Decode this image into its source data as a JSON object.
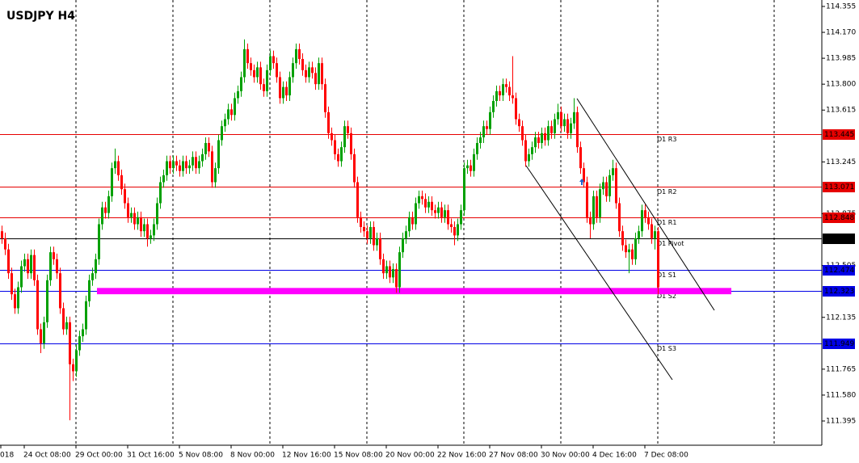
{
  "chart_data": {
    "type": "candlestick",
    "title": "USDJPY H4",
    "up_color": "#00a000",
    "down_color": "#ff0000",
    "ylim": [
      111.222,
      114.401
    ],
    "yticks": [
      {
        "value": 114.355,
        "label": "114.355"
      },
      {
        "value": 114.17,
        "label": "114.170"
      },
      {
        "value": 113.985,
        "label": "113.985"
      },
      {
        "value": 113.8,
        "label": "113.800"
      },
      {
        "value": 113.615,
        "label": "113.615"
      },
      {
        "value": 113.245,
        "label": "113.245"
      },
      {
        "value": 112.875,
        "label": "112.875"
      },
      {
        "value": 112.505,
        "label": "112.505"
      },
      {
        "value": 112.135,
        "label": "112.135"
      },
      {
        "value": 111.765,
        "label": "111.765"
      },
      {
        "value": 111.58,
        "label": "111.580"
      },
      {
        "value": 111.395,
        "label": "111.395"
      }
    ],
    "time_labels": [
      "018",
      "24 Oct 08:00",
      "29 Oct 00:00",
      "31 Oct 16:00",
      "5 Nov 08:00",
      "8 Nov 00:00",
      "12 Nov 16:00",
      "15 Nov 08:00",
      "20 Nov 00:00",
      "22 Nov 16:00",
      "27 Nov 08:00",
      "30 Nov 00:00",
      "4 Dec 16:00",
      "7 Dec 08:00"
    ],
    "levels": [
      {
        "name": "D1 R3",
        "value": 113.445,
        "color": "#e60000"
      },
      {
        "name": "D1 R2",
        "value": 113.071,
        "color": "#e60000"
      },
      {
        "name": "D1 R1",
        "value": 112.848,
        "color": "#e60000"
      },
      {
        "name": "D1 Pivot",
        "value": 112.697,
        "color": "#000000"
      },
      {
        "name": "D1 S1",
        "value": 112.474,
        "color": "#0000e6"
      },
      {
        "name": "D1 S2",
        "value": 112.323,
        "color": "#0000e6"
      },
      {
        "name": "D1 S3",
        "value": 111.949,
        "color": "#0000e6"
      }
    ],
    "zone": {
      "low": 112.3,
      "high": 112.345,
      "color": "#ff00ff"
    },
    "candles": [
      [
        112.75,
        112.79,
        112.66,
        112.7
      ],
      [
        112.7,
        112.74,
        112.58,
        112.62
      ],
      [
        112.62,
        112.66,
        112.41,
        112.45
      ],
      [
        112.45,
        112.49,
        112.26,
        112.3
      ],
      [
        112.3,
        112.34,
        112.16,
        112.2
      ],
      [
        112.2,
        112.39,
        112.16,
        112.35
      ],
      [
        112.35,
        112.54,
        112.31,
        112.5
      ],
      [
        112.5,
        112.59,
        112.46,
        112.55
      ],
      [
        112.55,
        112.59,
        112.41,
        112.45
      ],
      [
        112.45,
        112.62,
        112.41,
        112.58
      ],
      [
        112.58,
        112.62,
        112.36,
        112.4
      ],
      [
        112.4,
        112.44,
        112.01,
        112.05
      ],
      [
        112.05,
        112.09,
        111.88,
        111.95
      ],
      [
        111.95,
        112.14,
        111.91,
        112.1
      ],
      [
        112.1,
        112.44,
        112.06,
        112.4
      ],
      [
        112.4,
        112.64,
        112.36,
        112.6
      ],
      [
        112.6,
        112.64,
        112.51,
        112.55
      ],
      [
        112.55,
        112.59,
        112.41,
        112.45
      ],
      [
        112.45,
        112.49,
        112.16,
        112.2
      ],
      [
        112.2,
        112.24,
        112.01,
        112.05
      ],
      [
        112.05,
        112.14,
        112.01,
        112.1
      ],
      [
        112.1,
        112.14,
        111.4,
        111.8
      ],
      [
        111.8,
        111.84,
        111.68,
        111.75
      ],
      [
        111.75,
        111.94,
        111.71,
        111.9
      ],
      [
        111.9,
        112.04,
        111.86,
        112.0
      ],
      [
        112.0,
        112.09,
        111.96,
        112.05
      ],
      [
        112.05,
        112.29,
        112.01,
        112.25
      ],
      [
        112.25,
        112.44,
        112.21,
        112.4
      ],
      [
        112.4,
        112.49,
        112.36,
        112.45
      ],
      [
        112.45,
        112.59,
        112.41,
        112.55
      ],
      [
        112.55,
        112.84,
        112.51,
        112.8
      ],
      [
        112.8,
        112.96,
        112.76,
        112.92
      ],
      [
        112.92,
        112.96,
        112.84,
        112.88
      ],
      [
        112.88,
        113.04,
        112.84,
        113.0
      ],
      [
        113.0,
        113.24,
        112.96,
        113.2
      ],
      [
        113.2,
        113.34,
        113.16,
        113.25
      ],
      [
        113.25,
        113.29,
        113.11,
        113.15
      ],
      [
        113.15,
        113.19,
        113.01,
        113.05
      ],
      [
        113.05,
        113.09,
        112.91,
        112.95
      ],
      [
        112.95,
        112.99,
        112.81,
        112.85
      ],
      [
        112.85,
        112.92,
        112.81,
        112.88
      ],
      [
        112.88,
        112.92,
        112.76,
        112.8
      ],
      [
        112.8,
        112.89,
        112.76,
        112.85
      ],
      [
        112.85,
        112.89,
        112.71,
        112.75
      ],
      [
        112.75,
        112.84,
        112.71,
        112.8
      ],
      [
        112.8,
        112.84,
        112.64,
        112.7
      ],
      [
        112.7,
        112.76,
        112.66,
        112.72
      ],
      [
        112.72,
        112.84,
        112.68,
        112.8
      ],
      [
        112.8,
        112.99,
        112.76,
        112.95
      ],
      [
        112.95,
        113.14,
        112.91,
        113.1
      ],
      [
        113.1,
        113.19,
        113.06,
        113.15
      ],
      [
        113.15,
        113.29,
        113.11,
        113.25
      ],
      [
        113.25,
        113.29,
        113.16,
        113.2
      ],
      [
        113.2,
        113.29,
        113.16,
        113.25
      ],
      [
        113.25,
        113.29,
        113.18,
        113.22
      ],
      [
        113.22,
        113.26,
        113.14,
        113.18
      ],
      [
        113.18,
        113.29,
        113.14,
        113.25
      ],
      [
        113.25,
        113.29,
        113.16,
        113.2
      ],
      [
        113.2,
        113.26,
        113.16,
        113.22
      ],
      [
        113.22,
        113.32,
        113.18,
        113.28
      ],
      [
        113.28,
        113.32,
        113.16,
        113.2
      ],
      [
        113.2,
        113.29,
        113.16,
        113.25
      ],
      [
        113.25,
        113.34,
        113.21,
        113.3
      ],
      [
        113.3,
        113.42,
        113.26,
        113.38
      ],
      [
        113.38,
        113.42,
        113.28,
        113.32
      ],
      [
        113.32,
        113.36,
        113.06,
        113.1
      ],
      [
        113.1,
        113.24,
        113.06,
        113.2
      ],
      [
        113.2,
        113.44,
        113.16,
        113.4
      ],
      [
        113.4,
        113.54,
        113.36,
        113.5
      ],
      [
        113.5,
        113.59,
        113.46,
        113.55
      ],
      [
        113.55,
        113.66,
        113.51,
        113.62
      ],
      [
        113.62,
        113.66,
        113.54,
        113.58
      ],
      [
        113.58,
        113.74,
        113.54,
        113.7
      ],
      [
        113.7,
        113.79,
        113.66,
        113.75
      ],
      [
        113.75,
        113.89,
        113.71,
        113.85
      ],
      [
        113.85,
        114.12,
        113.81,
        114.05
      ],
      [
        114.05,
        114.09,
        113.91,
        113.95
      ],
      [
        113.95,
        113.99,
        113.86,
        113.9
      ],
      [
        113.9,
        113.94,
        113.81,
        113.85
      ],
      [
        113.85,
        113.96,
        113.81,
        113.92
      ],
      [
        113.92,
        113.96,
        113.76,
        113.8
      ],
      [
        113.8,
        113.84,
        113.71,
        113.75
      ],
      [
        113.75,
        113.94,
        113.71,
        113.9
      ],
      [
        113.9,
        114.04,
        113.86,
        114.0
      ],
      [
        114.0,
        114.04,
        113.91,
        113.95
      ],
      [
        113.95,
        113.99,
        113.81,
        113.85
      ],
      [
        113.85,
        113.89,
        113.66,
        113.7
      ],
      [
        113.7,
        113.82,
        113.66,
        113.78
      ],
      [
        113.78,
        113.82,
        113.68,
        113.72
      ],
      [
        113.72,
        113.89,
        113.68,
        113.85
      ],
      [
        113.85,
        113.99,
        113.81,
        113.95
      ],
      [
        113.95,
        114.09,
        113.91,
        114.05
      ],
      [
        114.05,
        114.09,
        113.94,
        113.98
      ],
      [
        113.98,
        114.02,
        113.86,
        113.9
      ],
      [
        113.9,
        113.94,
        113.81,
        113.85
      ],
      [
        113.85,
        113.96,
        113.81,
        113.92
      ],
      [
        113.92,
        113.96,
        113.84,
        113.88
      ],
      [
        113.88,
        113.92,
        113.76,
        113.8
      ],
      [
        113.8,
        113.99,
        113.76,
        113.95
      ],
      [
        113.95,
        113.99,
        113.76,
        113.8
      ],
      [
        113.8,
        113.84,
        113.56,
        113.6
      ],
      [
        113.6,
        113.64,
        113.41,
        113.45
      ],
      [
        113.45,
        113.49,
        113.36,
        113.4
      ],
      [
        113.4,
        113.44,
        113.26,
        113.3
      ],
      [
        113.3,
        113.34,
        113.21,
        113.25
      ],
      [
        113.25,
        113.39,
        113.21,
        113.35
      ],
      [
        113.35,
        113.54,
        113.31,
        113.5
      ],
      [
        113.5,
        113.54,
        113.41,
        113.45
      ],
      [
        113.45,
        113.49,
        113.26,
        113.3
      ],
      [
        113.3,
        113.34,
        113.06,
        113.1
      ],
      [
        113.1,
        113.14,
        112.81,
        112.85
      ],
      [
        112.85,
        112.89,
        112.74,
        112.78
      ],
      [
        112.78,
        112.82,
        112.71,
        112.75
      ],
      [
        112.75,
        112.79,
        112.66,
        112.7
      ],
      [
        112.7,
        112.82,
        112.66,
        112.78
      ],
      [
        112.78,
        112.82,
        112.61,
        112.65
      ],
      [
        112.65,
        112.74,
        112.61,
        112.7
      ],
      [
        112.7,
        112.74,
        112.51,
        112.55
      ],
      [
        112.55,
        112.59,
        112.41,
        112.45
      ],
      [
        112.45,
        112.54,
        112.41,
        112.5
      ],
      [
        112.5,
        112.54,
        112.38,
        112.42
      ],
      [
        112.42,
        112.52,
        112.38,
        112.48
      ],
      [
        112.48,
        112.52,
        112.31,
        112.35
      ],
      [
        112.35,
        112.64,
        112.31,
        112.6
      ],
      [
        112.6,
        112.74,
        112.56,
        112.7
      ],
      [
        112.7,
        112.79,
        112.66,
        112.75
      ],
      [
        112.75,
        112.89,
        112.71,
        112.85
      ],
      [
        112.85,
        112.89,
        112.76,
        112.8
      ],
      [
        112.8,
        112.99,
        112.76,
        112.95
      ],
      [
        112.95,
        113.04,
        112.91,
        113.0
      ],
      [
        113.0,
        113.04,
        112.94,
        112.98
      ],
      [
        112.98,
        113.02,
        112.88,
        112.92
      ],
      [
        112.92,
        113.0,
        112.88,
        112.96
      ],
      [
        112.96,
        113.0,
        112.86,
        112.9
      ],
      [
        112.9,
        112.94,
        112.84,
        112.88
      ],
      [
        112.88,
        112.96,
        112.84,
        112.92
      ],
      [
        112.92,
        112.96,
        112.81,
        112.85
      ],
      [
        112.85,
        112.94,
        112.81,
        112.9
      ],
      [
        112.9,
        112.94,
        112.76,
        112.8
      ],
      [
        112.8,
        112.84,
        112.74,
        112.78
      ],
      [
        112.78,
        112.82,
        112.65,
        112.72
      ],
      [
        112.72,
        112.84,
        112.68,
        112.8
      ],
      [
        112.8,
        112.94,
        112.76,
        112.9
      ],
      [
        112.9,
        113.24,
        112.86,
        113.2
      ],
      [
        113.2,
        113.26,
        113.16,
        113.22
      ],
      [
        113.22,
        113.26,
        113.14,
        113.18
      ],
      [
        113.18,
        113.34,
        113.14,
        113.3
      ],
      [
        113.3,
        113.42,
        113.26,
        113.38
      ],
      [
        113.38,
        113.46,
        113.34,
        113.42
      ],
      [
        113.42,
        113.54,
        113.38,
        113.5
      ],
      [
        113.5,
        113.54,
        113.44,
        113.48
      ],
      [
        113.48,
        113.64,
        113.44,
        113.6
      ],
      [
        113.6,
        113.72,
        113.56,
        113.68
      ],
      [
        113.68,
        113.79,
        113.64,
        113.75
      ],
      [
        113.75,
        113.79,
        113.68,
        113.72
      ],
      [
        113.72,
        113.84,
        113.68,
        113.8
      ],
      [
        113.8,
        113.84,
        113.74,
        113.78
      ],
      [
        113.78,
        113.82,
        113.68,
        113.72
      ],
      [
        113.72,
        114.0,
        113.66,
        113.7
      ],
      [
        113.7,
        113.74,
        113.51,
        113.55
      ],
      [
        113.55,
        113.59,
        113.46,
        113.5
      ],
      [
        113.5,
        113.54,
        113.36,
        113.4
      ],
      [
        113.4,
        113.44,
        113.21,
        113.25
      ],
      [
        113.25,
        113.34,
        113.21,
        113.3
      ],
      [
        113.3,
        113.39,
        113.26,
        113.35
      ],
      [
        113.35,
        113.46,
        113.31,
        113.42
      ],
      [
        113.42,
        113.46,
        113.34,
        113.38
      ],
      [
        113.38,
        113.49,
        113.34,
        113.45
      ],
      [
        113.45,
        113.49,
        113.36,
        113.4
      ],
      [
        113.4,
        113.54,
        113.36,
        113.5
      ],
      [
        113.5,
        113.54,
        113.41,
        113.45
      ],
      [
        113.45,
        113.59,
        113.41,
        113.55
      ],
      [
        113.55,
        113.66,
        113.51,
        113.6
      ],
      [
        113.6,
        113.64,
        113.46,
        113.5
      ],
      [
        113.5,
        113.59,
        113.46,
        113.55
      ],
      [
        113.55,
        113.59,
        113.41,
        113.45
      ],
      [
        113.45,
        113.56,
        113.41,
        113.52
      ],
      [
        113.52,
        113.7,
        113.48,
        113.6
      ],
      [
        113.6,
        113.64,
        113.31,
        113.35
      ],
      [
        113.35,
        113.39,
        113.16,
        113.2
      ],
      [
        113.2,
        113.24,
        113.06,
        113.1
      ],
      [
        113.1,
        113.14,
        112.81,
        112.85
      ],
      [
        112.85,
        112.89,
        112.7,
        112.8
      ],
      [
        112.8,
        113.04,
        112.76,
        113.0
      ],
      [
        113.0,
        113.04,
        112.81,
        112.85
      ],
      [
        112.85,
        113.09,
        112.81,
        113.05
      ],
      [
        113.05,
        113.14,
        113.01,
        113.1
      ],
      [
        113.1,
        113.14,
        112.96,
        113.0
      ],
      [
        113.0,
        113.19,
        112.96,
        113.15
      ],
      [
        113.15,
        113.26,
        113.11,
        113.2
      ],
      [
        113.2,
        113.24,
        112.91,
        112.95
      ],
      [
        112.95,
        112.99,
        112.71,
        112.75
      ],
      [
        112.75,
        112.79,
        112.61,
        112.65
      ],
      [
        112.65,
        112.69,
        112.56,
        112.6
      ],
      [
        112.6,
        112.66,
        112.45,
        112.62
      ],
      [
        112.62,
        112.66,
        112.51,
        112.55
      ],
      [
        112.55,
        112.74,
        112.51,
        112.7
      ],
      [
        112.7,
        112.79,
        112.66,
        112.75
      ],
      [
        112.75,
        112.94,
        112.71,
        112.9
      ],
      [
        112.9,
        112.94,
        112.81,
        112.85
      ],
      [
        112.85,
        112.89,
        112.76,
        112.8
      ],
      [
        112.8,
        112.84,
        112.66,
        112.7
      ],
      [
        112.7,
        112.79,
        112.62,
        112.75
      ],
      [
        112.75,
        112.78,
        112.3,
        112.35
      ]
    ]
  }
}
